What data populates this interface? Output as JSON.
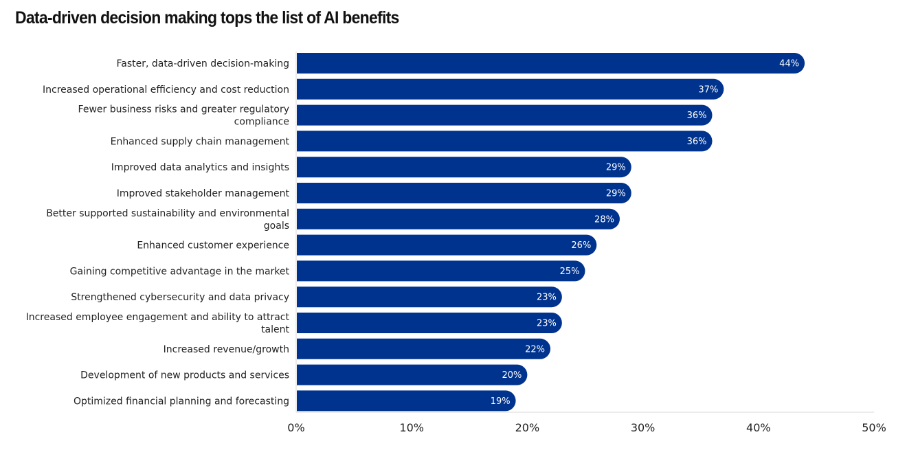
{
  "title": "Data-driven decision making tops the list of AI benefits",
  "colors": {
    "bar": "#00338d",
    "axis": "#d9d9d9",
    "value_text": "#ffffff"
  },
  "chart_data": {
    "type": "bar",
    "orientation": "horizontal",
    "title": "Data-driven decision making tops the list of AI benefits",
    "categories": [
      "Faster, data-driven decision-making",
      "Increased operational efficiency and cost reduction",
      "Fewer business risks and greater regulatory compliance",
      "Enhanced supply chain management",
      "Improved data analytics and insights",
      "Improved stakeholder management",
      "Better supported sustainability and environmental goals",
      "Enhanced customer experience",
      "Gaining competitive advantage in the market",
      "Strengthened cybersecurity and data privacy",
      "Increased employee engagement and ability to attract talent",
      "Increased revenue/growth",
      "Development of new products and services",
      "Optimized financial planning and forecasting"
    ],
    "category_lines": [
      [
        "Faster, data-driven decision-making"
      ],
      [
        "Increased operational efficiency and cost reduction"
      ],
      [
        "Fewer business risks and greater regulatory",
        "compliance"
      ],
      [
        "Enhanced supply chain management"
      ],
      [
        "Improved data analytics and insights"
      ],
      [
        "Improved stakeholder management"
      ],
      [
        "Better supported sustainability and environmental",
        "goals"
      ],
      [
        "Enhanced customer experience"
      ],
      [
        "Gaining competitive advantage in the market"
      ],
      [
        "Strengthened cybersecurity and data privacy"
      ],
      [
        "Increased employee engagement and ability to attract",
        "talent"
      ],
      [
        "Increased revenue/growth"
      ],
      [
        "Development of new products and services"
      ],
      [
        "Optimized financial planning and forecasting"
      ]
    ],
    "values": [
      44,
      37,
      36,
      36,
      29,
      29,
      28,
      26,
      25,
      23,
      23,
      22,
      20,
      19
    ],
    "value_labels": [
      "44%",
      "37%",
      "36%",
      "36%",
      "29%",
      "29%",
      "28%",
      "26%",
      "25%",
      "23%",
      "23%",
      "22%",
      "20%",
      "19%"
    ],
    "xlim": [
      0,
      50
    ],
    "xticks": [
      0,
      10,
      20,
      30,
      40,
      50
    ],
    "xtick_labels": [
      "0%",
      "10%",
      "20%",
      "30%",
      "40%",
      "50%"
    ],
    "xlabel": "",
    "ylabel": "",
    "grid": false,
    "legend": "none"
  }
}
